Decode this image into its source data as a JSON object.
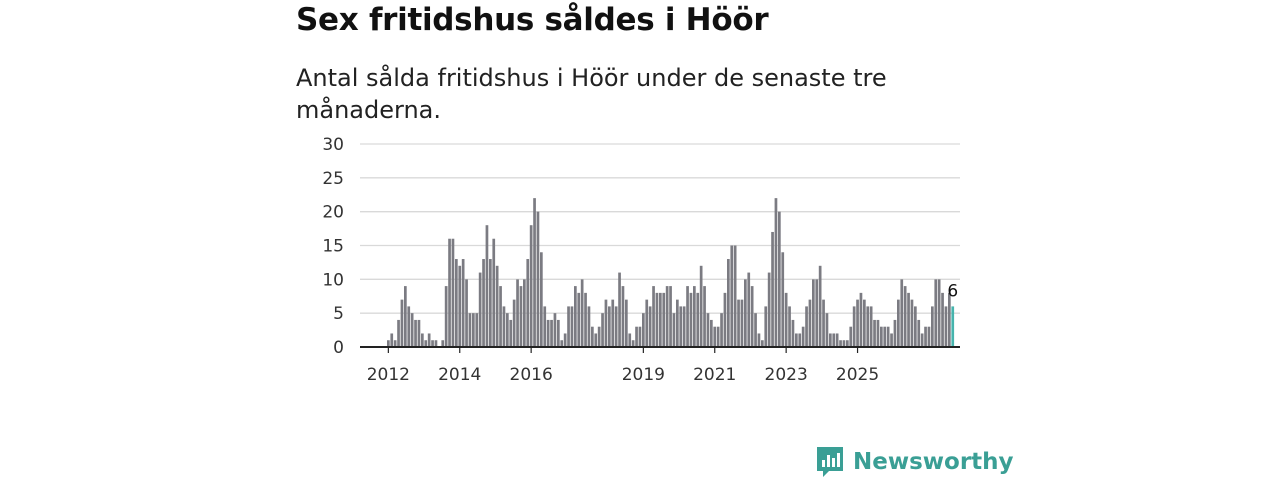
{
  "chart_data": {
    "type": "bar",
    "title": "Sex fritidshus såldes i Höör",
    "subtitle": "Antal sålda fritidshus i Höör under de senaste tre månaderna.",
    "xlabel": "",
    "ylabel": "",
    "ylim": [
      0,
      30
    ],
    "yticks": [
      0,
      5,
      10,
      15,
      20,
      25,
      30
    ],
    "grid": true,
    "x_tick_labels": [
      "2012",
      "2014",
      "2016",
      "2019",
      "2021",
      "2023",
      "2025"
    ],
    "x_tick_bar_index": [
      0,
      21,
      42,
      75,
      96,
      117,
      138
    ],
    "values": [
      1,
      2,
      1,
      4,
      7,
      9,
      6,
      5,
      4,
      4,
      2,
      1,
      2,
      1,
      1,
      0,
      1,
      9,
      16,
      16,
      13,
      12,
      13,
      10,
      5,
      5,
      5,
      11,
      13,
      18,
      13,
      16,
      12,
      9,
      6,
      5,
      4,
      7,
      10,
      9,
      10,
      13,
      18,
      22,
      20,
      14,
      6,
      4,
      4,
      5,
      4,
      1,
      2,
      6,
      6,
      9,
      8,
      10,
      8,
      6,
      3,
      2,
      3,
      5,
      7,
      6,
      7,
      6,
      11,
      9,
      7,
      2,
      1,
      3,
      3,
      5,
      7,
      6,
      9,
      8,
      8,
      8,
      9,
      9,
      5,
      7,
      6,
      6,
      9,
      8,
      9,
      8,
      12,
      9,
      5,
      4,
      3,
      3,
      5,
      8,
      13,
      15,
      15,
      7,
      7,
      10,
      11,
      9,
      5,
      2,
      1,
      6,
      11,
      17,
      22,
      20,
      14,
      8,
      6,
      4,
      2,
      2,
      3,
      6,
      7,
      10,
      10,
      12,
      7,
      5,
      2,
      2,
      2,
      1,
      1,
      1,
      3,
      6,
      7,
      8,
      7,
      6,
      6,
      4,
      4,
      3,
      3,
      3,
      2,
      4,
      7,
      10,
      9,
      8,
      7,
      6,
      4,
      2,
      3,
      3,
      6,
      10,
      10,
      8,
      6,
      8,
      6
    ],
    "last_value": 6,
    "last_value_label": "6",
    "colors": {
      "bar": "#7b7b82",
      "last_bar": "#46b4ad",
      "grid": "#d9d9d9",
      "axis": "#222222"
    }
  },
  "branding": {
    "name": "Newsworthy",
    "color": "#3a9f95",
    "icon": "bar-chart-logo-icon"
  }
}
